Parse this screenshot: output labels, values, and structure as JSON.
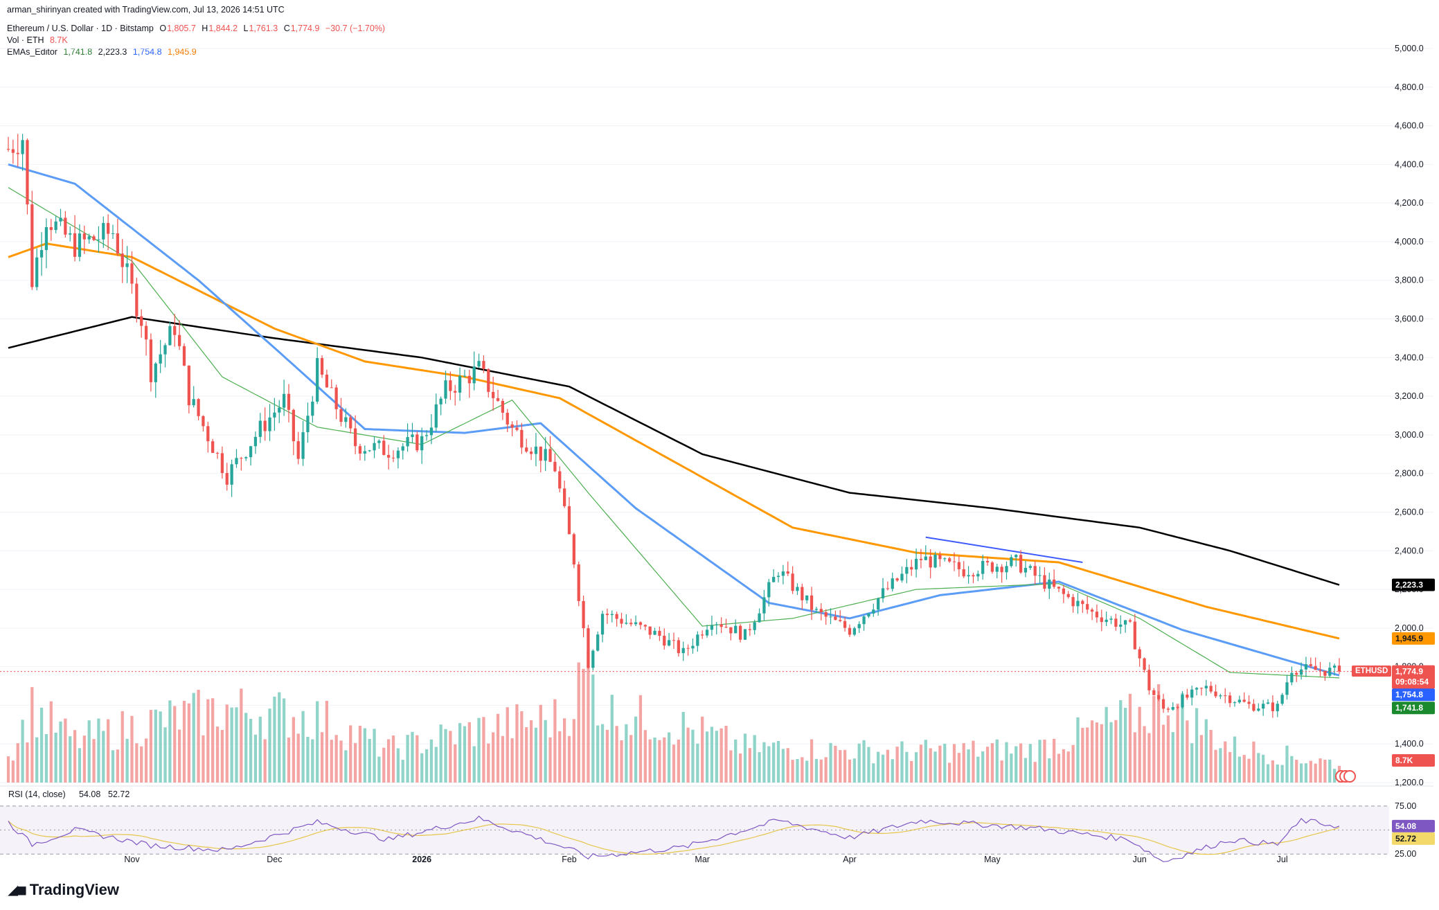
{
  "header": {
    "credit": "arman_shirinyan created with TradingView.com, Jul 13, 2026 14:51 UTC",
    "symbol_line": "Ethereum / U.S. Dollar · 1D · Bitstamp",
    "ohlc": {
      "o_label": "O",
      "o": "1,805.7",
      "h_label": "H",
      "h": "1,844.2",
      "l_label": "L",
      "l": "1,761.3",
      "c_label": "C",
      "c": "1,774.9",
      "change": "−30.7 (−1.70%)"
    },
    "vol_label": "Vol · ETH",
    "vol_value": "8.7K",
    "ema_label": "EMAs_Editor",
    "ema_values": [
      "1,741.8",
      "2,223.3",
      "1,754.8",
      "1,945.9"
    ]
  },
  "rsi": {
    "label": "RSI (14, close)",
    "value": "54.08",
    "ma_value": "52.72",
    "levels": [
      "75.00",
      "25.00"
    ]
  },
  "price_axis": [
    "5,000.0",
    "4,800.0",
    "4,600.0",
    "4,400.0",
    "4,200.0",
    "4,000.0",
    "3,800.0",
    "3,600.0",
    "3,400.0",
    "3,200.0",
    "3,000.0",
    "2,800.0",
    "2,600.0",
    "2,400.0",
    "2,200.0",
    "2,000.0",
    "1,800.0",
    "1,600.0",
    "1,400.0",
    "1,200.0"
  ],
  "time_axis": [
    "Nov",
    "Dec",
    "2026",
    "Feb",
    "Mar",
    "Apr",
    "May",
    "Jun",
    "Jul"
  ],
  "tags": {
    "ema200": "2,223.3",
    "ema100": "1,945.9",
    "price_symbol": "ETHUSD",
    "price": "1,774.9",
    "countdown": "09:08:54",
    "ema50": "1,754.8",
    "ema20": "1,741.8",
    "volume": "8.7K",
    "rsi": "54.08",
    "rsi_ma": "52.72"
  },
  "brand": "TradingView",
  "colors": {
    "up": "#26a69a",
    "down": "#ef5350",
    "vol_up": "#8fd3c9",
    "vol_down": "#f4a4a2",
    "ema20": "#4caf50",
    "ema50": "#5b9cf6",
    "ema100": "#ff9800",
    "ema200": "#000000",
    "rsi": "#7e57c2",
    "rsi_ma": "#e6c64a",
    "trendline": "#3d5afe"
  },
  "chart_data": {
    "type": "candlestick",
    "title": "Ethereum / U.S. Dollar · 1D · Bitstamp",
    "ylim": [
      1200,
      5000
    ],
    "x_range": [
      "2025-10-06",
      "2026-07-13"
    ],
    "last": {
      "open": 1805.7,
      "high": 1844.2,
      "low": 1761.3,
      "close": 1774.9
    },
    "close_anchors": [
      [
        "2025-10-06",
        4480
      ],
      [
        "2025-10-09",
        4540
      ],
      [
        "2025-10-11",
        3800
      ],
      [
        "2025-10-14",
        4130
      ],
      [
        "2025-10-20",
        3980
      ],
      [
        "2025-10-28",
        4050
      ],
      [
        "2025-11-03",
        3600
      ],
      [
        "2025-11-05",
        3330
      ],
      [
        "2025-11-10",
        3560
      ],
      [
        "2025-11-13",
        3200
      ],
      [
        "2025-11-21",
        2790
      ],
      [
        "2025-11-28",
        3030
      ],
      [
        "2025-12-03",
        3180
      ],
      [
        "2025-12-06",
        2870
      ],
      [
        "2025-12-10",
        3340
      ],
      [
        "2025-12-18",
        2950
      ],
      [
        "2025-12-25",
        2920
      ],
      [
        "2026-01-01",
        2970
      ],
      [
        "2026-01-06",
        3230
      ],
      [
        "2026-01-13",
        3340
      ],
      [
        "2026-01-20",
        3030
      ],
      [
        "2026-01-26",
        2900
      ],
      [
        "2026-01-29",
        2830
      ],
      [
        "2026-02-02",
        2350
      ],
      [
        "2026-02-05",
        1820
      ],
      [
        "2026-02-08",
        2080
      ],
      [
        "2026-02-20",
        1960
      ],
      [
        "2026-02-25",
        1870
      ],
      [
        "2026-03-03",
        2050
      ],
      [
        "2026-03-10",
        1960
      ],
      [
        "2026-03-17",
        2300
      ],
      [
        "2026-03-25",
        2080
      ],
      [
        "2026-04-01",
        1990
      ],
      [
        "2026-04-08",
        2180
      ],
      [
        "2026-04-16",
        2360
      ],
      [
        "2026-04-25",
        2300
      ],
      [
        "2026-05-06",
        2340
      ],
      [
        "2026-05-14",
        2200
      ],
      [
        "2026-05-22",
        2080
      ],
      [
        "2026-05-30",
        2000
      ],
      [
        "2026-06-03",
        1690
      ],
      [
        "2026-06-06",
        1580
      ],
      [
        "2026-06-15",
        1690
      ],
      [
        "2026-06-24",
        1600
      ],
      [
        "2026-06-30",
        1590
      ],
      [
        "2026-07-03",
        1790
      ],
      [
        "2026-07-13",
        1774.9
      ]
    ],
    "ema_series": [
      {
        "name": "EMA 20",
        "last": 1741.8,
        "anchors": [
          [
            "2025-10-06",
            4280
          ],
          [
            "2025-11-01",
            3900
          ],
          [
            "2025-11-20",
            3300
          ],
          [
            "2025-12-10",
            3040
          ],
          [
            "2026-01-01",
            2950
          ],
          [
            "2026-01-20",
            3180
          ],
          [
            "2026-02-05",
            2700
          ],
          [
            "2026-03-01",
            2010
          ],
          [
            "2026-03-20",
            2050
          ],
          [
            "2026-04-15",
            2200
          ],
          [
            "2026-05-15",
            2230
          ],
          [
            "2026-06-01",
            2050
          ],
          [
            "2026-06-20",
            1770
          ],
          [
            "2026-07-13",
            1741.8
          ]
        ]
      },
      {
        "name": "EMA 50",
        "last": 1754.8,
        "anchors": [
          [
            "2025-10-06",
            4400
          ],
          [
            "2025-10-20",
            4300
          ],
          [
            "2025-11-15",
            3800
          ],
          [
            "2025-12-01",
            3450
          ],
          [
            "2025-12-20",
            3030
          ],
          [
            "2026-01-10",
            3010
          ],
          [
            "2026-01-26",
            3060
          ],
          [
            "2026-02-15",
            2620
          ],
          [
            "2026-03-15",
            2130
          ],
          [
            "2026-04-01",
            2050
          ],
          [
            "2026-04-20",
            2170
          ],
          [
            "2026-05-15",
            2240
          ],
          [
            "2026-06-10",
            1990
          ],
          [
            "2026-07-13",
            1754.8
          ]
        ]
      },
      {
        "name": "EMA 100",
        "last": 1945.9,
        "anchors": [
          [
            "2025-10-06",
            3920
          ],
          [
            "2025-10-14",
            3990
          ],
          [
            "2025-11-01",
            3920
          ],
          [
            "2025-12-01",
            3550
          ],
          [
            "2025-12-20",
            3380
          ],
          [
            "2026-01-10",
            3300
          ],
          [
            "2026-01-30",
            3190
          ],
          [
            "2026-03-01",
            2780
          ],
          [
            "2026-03-20",
            2520
          ],
          [
            "2026-04-15",
            2390
          ],
          [
            "2026-05-15",
            2340
          ],
          [
            "2026-06-15",
            2110
          ],
          [
            "2026-07-13",
            1945.9
          ]
        ]
      },
      {
        "name": "EMA 200",
        "last": 2223.3,
        "anchors": [
          [
            "2025-10-06",
            3450
          ],
          [
            "2025-11-01",
            3610
          ],
          [
            "2025-12-01",
            3500
          ],
          [
            "2026-01-01",
            3400
          ],
          [
            "2026-02-01",
            3250
          ],
          [
            "2026-03-01",
            2900
          ],
          [
            "2026-04-01",
            2700
          ],
          [
            "2026-05-01",
            2620
          ],
          [
            "2026-06-01",
            2520
          ],
          [
            "2026-06-20",
            2400
          ],
          [
            "2026-07-13",
            2223.3
          ]
        ]
      }
    ],
    "trendline": [
      [
        "2026-04-17",
        2470
      ],
      [
        "2026-05-20",
        2340
      ]
    ],
    "volume_anchors": [
      [
        "2025-10-06",
        0.22
      ],
      [
        "2025-10-11",
        0.62
      ],
      [
        "2025-10-20",
        0.35
      ],
      [
        "2025-11-04",
        0.5
      ],
      [
        "2025-11-21",
        0.62
      ],
      [
        "2025-12-10",
        0.55
      ],
      [
        "2025-12-25",
        0.28
      ],
      [
        "2026-01-13",
        0.45
      ],
      [
        "2026-01-31",
        0.55
      ],
      [
        "2026-02-05",
        0.98
      ],
      [
        "2026-02-08",
        0.6
      ],
      [
        "2026-02-24",
        0.48
      ],
      [
        "2026-03-10",
        0.3
      ],
      [
        "2026-04-10",
        0.26
      ],
      [
        "2026-05-10",
        0.28
      ],
      [
        "2026-06-03",
        0.6
      ],
      [
        "2026-06-06",
        0.7
      ],
      [
        "2026-06-20",
        0.3
      ],
      [
        "2026-07-13",
        0.16
      ]
    ],
    "rsi_anchors": [
      [
        "2025-10-06",
        58
      ],
      [
        "2025-10-11",
        35
      ],
      [
        "2025-10-20",
        50
      ],
      [
        "2025-11-05",
        34
      ],
      [
        "2025-11-21",
        29
      ],
      [
        "2025-12-10",
        58
      ],
      [
        "2025-12-25",
        40
      ],
      [
        "2026-01-13",
        62
      ],
      [
        "2026-01-31",
        32
      ],
      [
        "2026-02-05",
        22
      ],
      [
        "2026-02-25",
        32
      ],
      [
        "2026-03-17",
        60
      ],
      [
        "2026-04-01",
        42
      ],
      [
        "2026-04-16",
        60
      ],
      [
        "2026-05-10",
        52
      ],
      [
        "2026-05-30",
        40
      ],
      [
        "2026-06-06",
        17
      ],
      [
        "2026-06-20",
        40
      ],
      [
        "2026-06-30",
        35
      ],
      [
        "2026-07-05",
        60
      ],
      [
        "2026-07-13",
        54.08
      ]
    ],
    "rsi_ma_last": 52.72
  }
}
